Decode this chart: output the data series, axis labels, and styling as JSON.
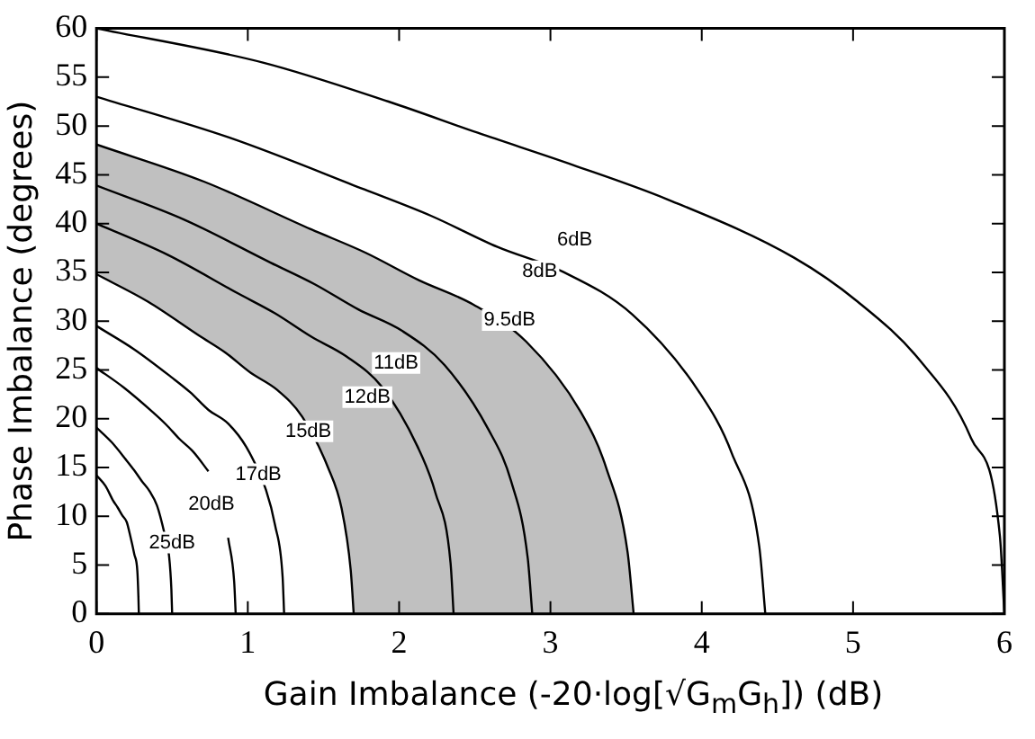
{
  "chart_data": {
    "type": "line",
    "xlabel": "Gain Imbalance (-20·log[√G$_{m}$G$_{h}$])  (dB)",
    "ylabel": "Phase Imbalance (degrees)",
    "xlim": [
      0,
      6
    ],
    "xticks": [
      0,
      1,
      2,
      3,
      4,
      5,
      6
    ],
    "ylim": [
      0,
      60
    ],
    "yticks": [
      0,
      5,
      10,
      15,
      20,
      25,
      30,
      35,
      40,
      45,
      50,
      55,
      60
    ],
    "grid": false,
    "legend": false,
    "marker": "none",
    "line_style": "solid",
    "series": [
      {
        "color": "#000000",
        "x": [
          0,
          1.1,
          1.93,
          2.52,
          3.15,
          3.77,
          4.61,
          5.03,
          5.44,
          5.78,
          5.97,
          6
        ],
        "values": [
          60,
          56.5,
          52.5,
          49.3,
          46,
          42.5,
          36.5,
          32,
          26,
          18,
          8,
          0
        ]
      },
      {
        "color": "#000000",
        "x": [
          0,
          0.88,
          1.77,
          2.21,
          2.65,
          3.09,
          3.54,
          3.98,
          4.2,
          4.38,
          4.42
        ],
        "values": [
          53,
          48.8,
          43.5,
          40.8,
          37.6,
          35,
          30.7,
          22.8,
          16.4,
          6.9,
          0
        ]
      },
      {
        "type": "area",
        "color": "#c0c0c0",
        "x": [
          0,
          0.71,
          1.42,
          1.78,
          2.13,
          2.49,
          2.84,
          3.2,
          3.37,
          3.51,
          3.55
        ],
        "values": [
          48.1,
          44.3,
          39.4,
          37,
          34.2,
          31.7,
          27.9,
          20.7,
          14.9,
          6.3,
          0
        ]
      },
      {
        "color": "#000000",
        "x": [
          0,
          0.58,
          1.15,
          1.44,
          1.73,
          2.02,
          2.3,
          2.59,
          2.74,
          2.85,
          2.88
        ],
        "values": [
          43.9,
          40.4,
          36,
          33.8,
          31.2,
          29,
          25.5,
          18.9,
          13.6,
          5.7,
          0
        ]
      },
      {
        "color": "#000000",
        "x": [
          0,
          0.47,
          0.94,
          1.18,
          1.42,
          1.65,
          1.89,
          2.12,
          2.24,
          2.34,
          2.36
        ],
        "values": [
          40,
          36.8,
          32.8,
          30.8,
          28.4,
          26.4,
          23.2,
          17.2,
          12.4,
          5.2,
          0
        ]
      },
      {
        "type": "area",
        "color": "#ffffff",
        "x": [
          0,
          0.34,
          0.68,
          0.85,
          1.02,
          1.19,
          1.36,
          1.53,
          1.62,
          1.68,
          1.7
        ],
        "values": [
          34.8,
          32,
          28.5,
          26.8,
          24.7,
          23,
          20.2,
          15,
          10.8,
          4.5,
          0
        ]
      },
      {
        "color": "#000000",
        "x": [
          0,
          0.25,
          0.5,
          0.62,
          0.74,
          0.87,
          0.99,
          1.12,
          1.18,
          1.23,
          1.24
        ],
        "values": [
          29.5,
          27.1,
          24.2,
          22.7,
          20.9,
          19.5,
          17.1,
          12.7,
          9.1,
          3.8,
          0
        ]
      },
      {
        "color": "#000000",
        "x": [
          0,
          0.18,
          0.37,
          0.46,
          0.55,
          0.64,
          0.74,
          0.83,
          0.87,
          0.91,
          0.92
        ],
        "values": [
          25.2,
          23.2,
          20.7,
          19.4,
          17.9,
          16.6,
          14.6,
          null,
          7.8,
          3.3,
          0
        ]
      },
      {
        "color": "#000000",
        "x": [
          0,
          0.1,
          0.2,
          0.25,
          0.3,
          0.35,
          0.4,
          0.45,
          0.48,
          0.495,
          0.5
        ],
        "values": [
          19.1,
          17.6,
          15.7,
          14.7,
          13.6,
          12.6,
          11.1,
          8.2,
          5.9,
          2.5,
          0
        ]
      },
      {
        "color": "#000000",
        "x": [
          0,
          0.06,
          0.11,
          0.14,
          0.17,
          0.2,
          0.22,
          0.25,
          0.27,
          0.277,
          0.28
        ],
        "values": [
          14.2,
          13.1,
          11.6,
          10.9,
          10.1,
          9.4,
          8.2,
          6.1,
          4.4,
          1.8,
          0
        ]
      }
    ],
    "annotations": [
      {
        "text": "6dB",
        "x": 3.16,
        "y": 38.3
      },
      {
        "text": "8dB",
        "x": 2.93,
        "y": 35.1
      },
      {
        "text": "9.5dB",
        "x": 2.73,
        "y": 30.1
      },
      {
        "text": "11dB",
        "x": 1.98,
        "y": 25.7
      },
      {
        "text": "12dB",
        "x": 1.79,
        "y": 22.2
      },
      {
        "text": "15dB",
        "x": 1.4,
        "y": 18.7
      },
      {
        "text": "17dB",
        "x": 1.07,
        "y": 14.3
      },
      {
        "text": "20dB",
        "x": 0.76,
        "y": 11.2
      },
      {
        "text": "25dB",
        "x": 0.5,
        "y": 7.3
      }
    ]
  }
}
